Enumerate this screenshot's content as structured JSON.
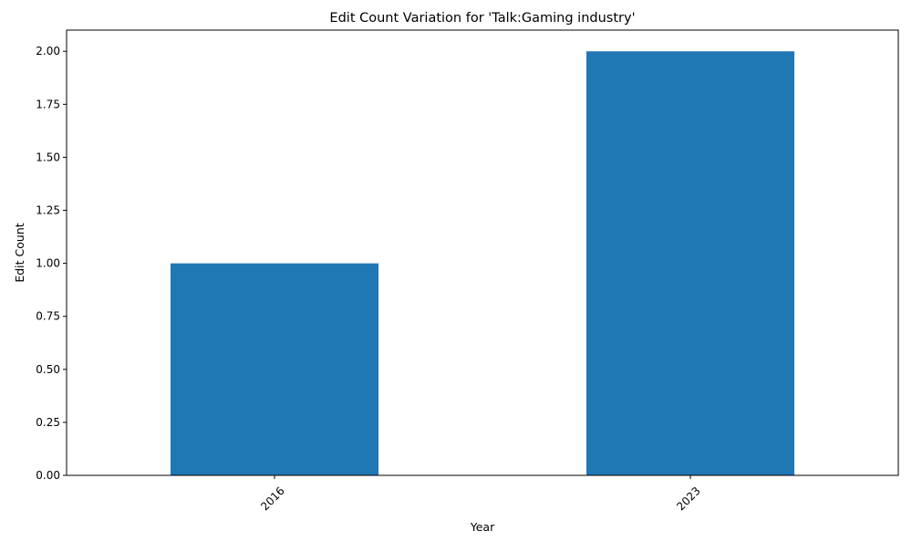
{
  "chart_data": {
    "type": "bar",
    "title": "Edit Count Variation for 'Talk:Gaming industry'",
    "xlabel": "Year",
    "ylabel": "Edit Count",
    "categories": [
      "2016",
      "2023"
    ],
    "values": [
      1,
      2
    ],
    "ylim": [
      0,
      2.1
    ],
    "yticks": [
      0,
      0.25,
      0.5,
      0.75,
      1,
      1.25,
      1.5,
      1.75,
      2
    ],
    "ytick_labels": [
      "0.00",
      "0.25",
      "0.50",
      "0.75",
      "1.00",
      "1.25",
      "1.50",
      "1.75",
      "2.00"
    ],
    "xtick_rotation": 45,
    "grid": false,
    "legend": "none",
    "colors": {
      "bar": "#1f77b4"
    }
  }
}
